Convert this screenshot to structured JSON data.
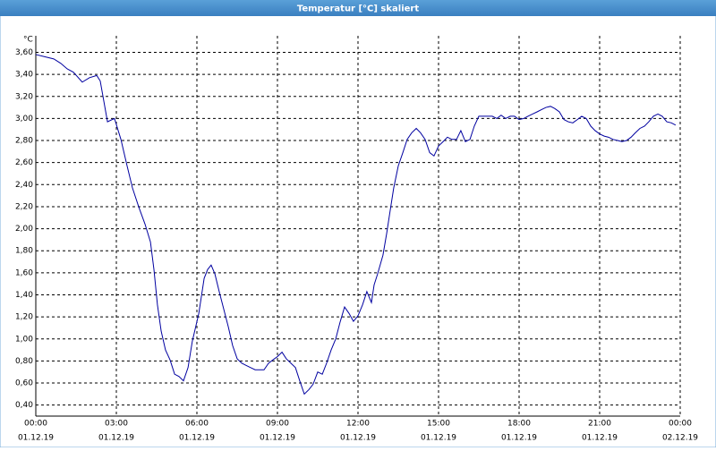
{
  "chart_data": {
    "type": "line",
    "title": "Temperatur [°C] skaliert",
    "y_label": "°C",
    "x": [
      0,
      0.33,
      0.67,
      0.93,
      1.17,
      1.4,
      1.73,
      2,
      2.27,
      2.4,
      2.67,
      2.93,
      3.17,
      3.4,
      3.6,
      3.83,
      4.07,
      4.27,
      4.4,
      4.53,
      4.67,
      4.83,
      5,
      5.17,
      5.33,
      5.5,
      5.67,
      5.83,
      6.07,
      6.27,
      6.4,
      6.53,
      6.67,
      6.83,
      7,
      7.17,
      7.33,
      7.5,
      7.67,
      7.83,
      8,
      8.17,
      8.33,
      8.5,
      8.67,
      8.83,
      9,
      9.17,
      9.33,
      9.5,
      9.67,
      9.83,
      10,
      10.17,
      10.33,
      10.5,
      10.67,
      10.83,
      11,
      11.17,
      11.33,
      11.5,
      11.67,
      11.83,
      12,
      12.17,
      12.33,
      12.5,
      12.6,
      12.73,
      12.93,
      13.07,
      13.17,
      13.33,
      13.5,
      13.67,
      13.83,
      14,
      14.17,
      14.33,
      14.5,
      14.67,
      14.83,
      15,
      15.17,
      15.33,
      15.5,
      15.67,
      15.83,
      16,
      16.17,
      16.33,
      16.5,
      16.67,
      17,
      17.17,
      17.33,
      17.5,
      17.67,
      17.83,
      18,
      18.17,
      18.33,
      18.5,
      18.67,
      18.83,
      19,
      19.17,
      19.33,
      19.5,
      19.67,
      19.83,
      20,
      20.17,
      20.33,
      20.5,
      20.67,
      20.83,
      21,
      21.17,
      21.33,
      21.5,
      21.67,
      21.83,
      22,
      22.17,
      22.33,
      22.5,
      22.67,
      22.83,
      23,
      23.17,
      23.33,
      23.5,
      23.67,
      23.83
    ],
    "values": [
      3.58,
      3.56,
      3.54,
      3.5,
      3.45,
      3.42,
      3.33,
      3.37,
      3.39,
      3.34,
      2.97,
      3.0,
      2.81,
      2.57,
      2.37,
      2.2,
      2.04,
      1.88,
      1.63,
      1.31,
      1.07,
      0.9,
      0.81,
      0.68,
      0.66,
      0.62,
      0.74,
      0.98,
      1.23,
      1.55,
      1.63,
      1.67,
      1.59,
      1.43,
      1.27,
      1.11,
      0.94,
      0.82,
      0.78,
      0.76,
      0.74,
      0.72,
      0.72,
      0.72,
      0.78,
      0.81,
      0.84,
      0.88,
      0.82,
      0.78,
      0.74,
      0.62,
      0.5,
      0.54,
      0.59,
      0.7,
      0.68,
      0.78,
      0.9,
      1.0,
      1.15,
      1.29,
      1.23,
      1.16,
      1.21,
      1.31,
      1.43,
      1.33,
      1.49,
      1.59,
      1.76,
      1.96,
      2.12,
      2.37,
      2.57,
      2.69,
      2.81,
      2.87,
      2.91,
      2.87,
      2.81,
      2.69,
      2.66,
      2.75,
      2.79,
      2.83,
      2.81,
      2.81,
      2.89,
      2.79,
      2.81,
      2.93,
      3.02,
      3.02,
      3.02,
      3.0,
      3.03,
      3.0,
      3.02,
      3.02,
      2.99,
      3.0,
      3.02,
      3.04,
      3.06,
      3.08,
      3.1,
      3.11,
      3.09,
      3.06,
      2.99,
      2.97,
      2.96,
      2.99,
      3.02,
      3.0,
      2.93,
      2.89,
      2.86,
      2.84,
      2.83,
      2.81,
      2.8,
      2.79,
      2.8,
      2.83,
      2.87,
      2.91,
      2.93,
      2.97,
      3.02,
      3.04,
      3.02,
      2.97,
      2.96,
      2.94
    ],
    "color": "#0000a0",
    "xlim": [
      0,
      24
    ],
    "xticks": [
      {
        "value": 0,
        "label": "00:00"
      },
      {
        "value": 3,
        "label": "03:00"
      },
      {
        "value": 6,
        "label": "06:00"
      },
      {
        "value": 9,
        "label": "09:00"
      },
      {
        "value": 12,
        "label": "12:00"
      },
      {
        "value": 15,
        "label": "15:00"
      },
      {
        "value": 18,
        "label": "18:00"
      },
      {
        "value": 21,
        "label": "21:00"
      },
      {
        "value": 24,
        "label": "00:00"
      }
    ],
    "xtick_dates": [
      "01.12.19",
      "01.12.19",
      "01.12.19",
      "01.12.19",
      "01.12.19",
      "01.12.19",
      "01.12.19",
      "01.12.19",
      "02.12.19"
    ],
    "ylim": [
      0.3,
      3.75
    ],
    "yticks": [
      {
        "value": 0.4,
        "label": "0,40"
      },
      {
        "value": 0.6,
        "label": "0,60"
      },
      {
        "value": 0.8,
        "label": "0,80"
      },
      {
        "value": 1.0,
        "label": "1,00"
      },
      {
        "value": 1.2,
        "label": "1,20"
      },
      {
        "value": 1.4,
        "label": "1,40"
      },
      {
        "value": 1.6,
        "label": "1,60"
      },
      {
        "value": 1.8,
        "label": "1,80"
      },
      {
        "value": 2.0,
        "label": "2,00"
      },
      {
        "value": 2.2,
        "label": "2,20"
      },
      {
        "value": 2.4,
        "label": "2,40"
      },
      {
        "value": 2.6,
        "label": "2,60"
      },
      {
        "value": 2.8,
        "label": "2,80"
      },
      {
        "value": 3.0,
        "label": "3,00"
      },
      {
        "value": 3.2,
        "label": "3,20"
      },
      {
        "value": 3.4,
        "label": "3,40"
      },
      {
        "value": 3.6,
        "label": "3,60"
      }
    ],
    "grid": true
  }
}
